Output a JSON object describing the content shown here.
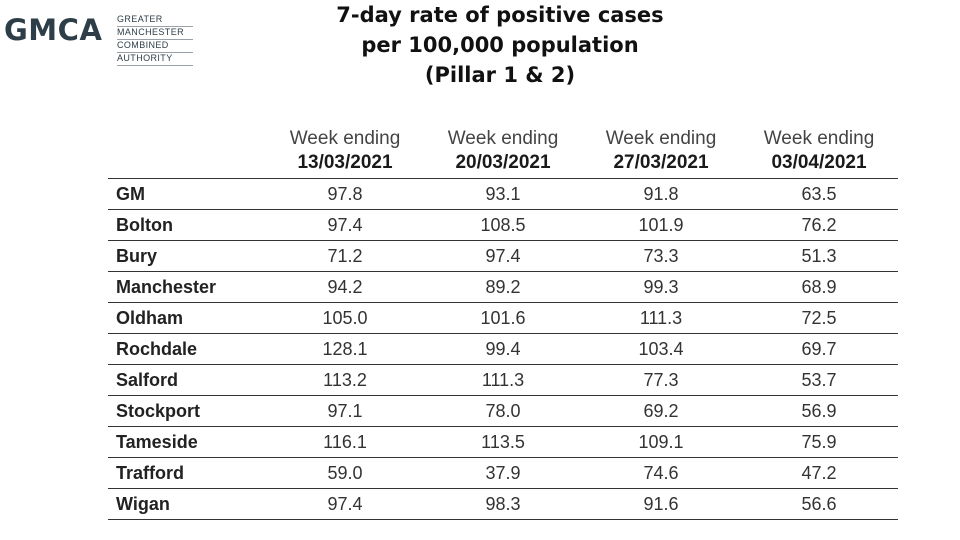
{
  "logo": {
    "mark": "GMCA",
    "lines": [
      "GREATER",
      "MANCHESTER",
      "COMBINED",
      "AUTHORITY"
    ]
  },
  "title": {
    "line1": "7-day rate of positive cases",
    "line2": "per 100,000 population",
    "line3": "(Pillar 1 & 2)"
  },
  "table": {
    "columns": [
      {
        "label": "Week ending",
        "date": "13/03/2021"
      },
      {
        "label": "Week ending",
        "date": "20/03/2021"
      },
      {
        "label": "Week ending",
        "date": "27/03/2021"
      },
      {
        "label": "Week ending",
        "date": "03/04/2021"
      }
    ],
    "rows": [
      {
        "area": "GM",
        "values": [
          "97.8",
          "93.1",
          "91.8",
          "63.5"
        ]
      },
      {
        "area": "Bolton",
        "values": [
          "97.4",
          "108.5",
          "101.9",
          "76.2"
        ]
      },
      {
        "area": "Bury",
        "values": [
          "71.2",
          "97.4",
          "73.3",
          "51.3"
        ]
      },
      {
        "area": "Manchester",
        "values": [
          "94.2",
          "89.2",
          "99.3",
          "68.9"
        ]
      },
      {
        "area": "Oldham",
        "values": [
          "105.0",
          "101.6",
          "111.3",
          "72.5"
        ]
      },
      {
        "area": "Rochdale",
        "values": [
          "128.1",
          "99.4",
          "103.4",
          "69.7"
        ]
      },
      {
        "area": "Salford",
        "values": [
          "113.2",
          "111.3",
          "77.3",
          "53.7"
        ]
      },
      {
        "area": "Stockport",
        "values": [
          "97.1",
          "78.0",
          "69.2",
          "56.9"
        ]
      },
      {
        "area": "Tameside",
        "values": [
          "116.1",
          "113.5",
          "109.1",
          "75.9"
        ]
      },
      {
        "area": "Trafford",
        "values": [
          "59.0",
          "37.9",
          "74.6",
          "47.2"
        ]
      },
      {
        "area": "Wigan",
        "values": [
          "97.4",
          "98.3",
          "91.6",
          "56.6"
        ]
      }
    ]
  }
}
